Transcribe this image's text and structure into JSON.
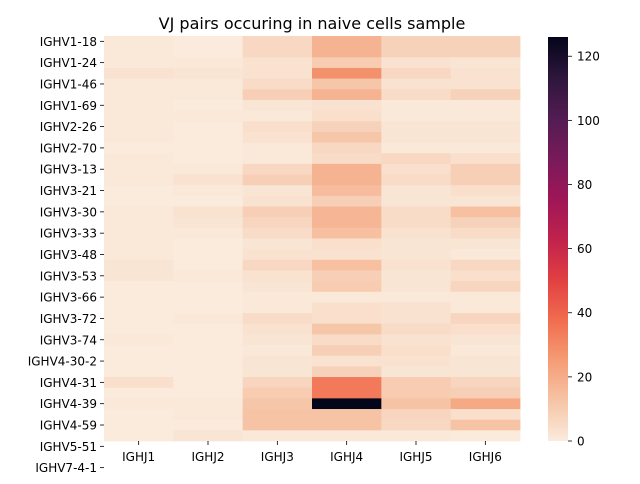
{
  "chart_data": {
    "type": "heatmap",
    "title": "VJ pairs occuring in naive cells sample",
    "xlabel": "",
    "ylabel": "",
    "x_categories": [
      "IGHJ1",
      "IGHJ2",
      "IGHJ3",
      "IGHJ4",
      "IGHJ5",
      "IGHJ6"
    ],
    "y_tick_labels": [
      "IGHV1-18",
      "IGHV1-24",
      "IGHV1-46",
      "IGHV1-69",
      "IGHV2-26",
      "IGHV2-70",
      "IGHV3-13",
      "IGHV3-21",
      "IGHV3-30",
      "IGHV3-33",
      "IGHV3-48",
      "IGHV3-53",
      "IGHV3-66",
      "IGHV3-72",
      "IGHV3-74",
      "IGHV4-30-2",
      "IGHV4-31",
      "IGHV4-39",
      "IGHV4-59",
      "IGHV5-51",
      "IGHV7-4-1"
    ],
    "values": [
      [
        1,
        0,
        6,
        18,
        8,
        8
      ],
      [
        1,
        0,
        6,
        18,
        8,
        8
      ],
      [
        1,
        1,
        3,
        10,
        3,
        2
      ],
      [
        3,
        2,
        3,
        28,
        6,
        3
      ],
      [
        1,
        1,
        5,
        12,
        3,
        3
      ],
      [
        1,
        1,
        9,
        18,
        5,
        8
      ],
      [
        1,
        0,
        2,
        3,
        1,
        1
      ],
      [
        1,
        1,
        1,
        4,
        1,
        1
      ],
      [
        1,
        0,
        4,
        8,
        2,
        2
      ],
      [
        1,
        0,
        3,
        12,
        2,
        2
      ],
      [
        0,
        0,
        1,
        6,
        1,
        1
      ],
      [
        1,
        0,
        1,
        5,
        6,
        4
      ],
      [
        1,
        1,
        6,
        18,
        4,
        9
      ],
      [
        1,
        3,
        9,
        18,
        5,
        9
      ],
      [
        0,
        1,
        2,
        15,
        2,
        4
      ],
      [
        0,
        0,
        3,
        9,
        2,
        2
      ],
      [
        1,
        3,
        9,
        17,
        5,
        14
      ],
      [
        1,
        2,
        7,
        17,
        5,
        8
      ],
      [
        1,
        1,
        5,
        14,
        3,
        5
      ],
      [
        1,
        0,
        2,
        4,
        2,
        2
      ],
      [
        1,
        0,
        3,
        3,
        2,
        1
      ],
      [
        2,
        0,
        6,
        14,
        3,
        6
      ],
      [
        2,
        1,
        3,
        9,
        2,
        4
      ],
      [
        0,
        0,
        2,
        10,
        2,
        7
      ],
      [
        0,
        0,
        1,
        1,
        1,
        1
      ],
      [
        0,
        0,
        1,
        4,
        3,
        1
      ],
      [
        0,
        1,
        5,
        4,
        3,
        7
      ],
      [
        0,
        0,
        3,
        12,
        5,
        4
      ],
      [
        1,
        0,
        2,
        5,
        3,
        2
      ],
      [
        0,
        0,
        1,
        9,
        4,
        1
      ],
      [
        0,
        0,
        2,
        3,
        3,
        2
      ],
      [
        0,
        0,
        2,
        8,
        2,
        2
      ],
      [
        4,
        0,
        7,
        34,
        10,
        7
      ],
      [
        0,
        0,
        10,
        34,
        10,
        9
      ],
      [
        1,
        1,
        12,
        126,
        13,
        21
      ],
      [
        0,
        1,
        13,
        13,
        7,
        4
      ],
      [
        0,
        0,
        13,
        13,
        6,
        13
      ],
      [
        0,
        2,
        1,
        1,
        1,
        0
      ]
    ],
    "colorbar": {
      "min": 0,
      "max": 126,
      "ticks": [
        0,
        20,
        40,
        60,
        80,
        100,
        120
      ],
      "colormap": "rocket_r"
    }
  }
}
